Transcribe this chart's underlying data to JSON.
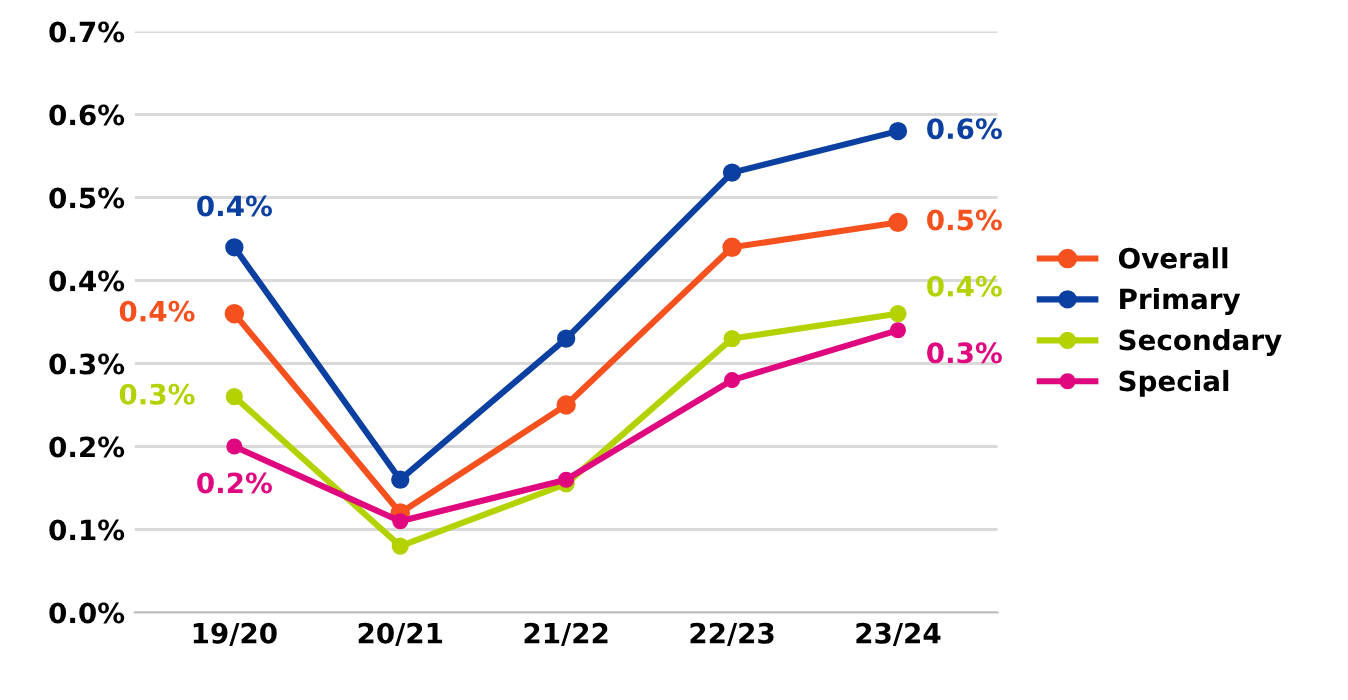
{
  "chart_data": {
    "type": "line",
    "categories": [
      "19/20",
      "20/21",
      "21/22",
      "22/23",
      "23/24"
    ],
    "series": [
      {
        "name": "Overall",
        "color": "#f4511e",
        "values": [
          0.36,
          0.12,
          0.25,
          0.44,
          0.47
        ],
        "value_labels": [
          "0.4%",
          null,
          null,
          null,
          "0.5%"
        ]
      },
      {
        "name": "Primary",
        "color": "#0b3fa0",
        "values": [
          0.44,
          0.16,
          0.33,
          0.53,
          0.58
        ],
        "value_labels": [
          "0.4%",
          null,
          null,
          null,
          "0.6%"
        ]
      },
      {
        "name": "Secondary",
        "color": "#b4d200",
        "values": [
          0.26,
          0.08,
          0.155,
          0.33,
          0.36
        ],
        "value_labels": [
          "0.3%",
          null,
          null,
          null,
          "0.4%"
        ]
      },
      {
        "name": "Special",
        "color": "#e0087e",
        "values": [
          0.2,
          0.11,
          0.16,
          0.28,
          0.34
        ],
        "value_labels": [
          "0.2%",
          null,
          null,
          null,
          "0.3%"
        ]
      }
    ],
    "ylim": [
      0,
      0.7
    ],
    "yticks": [
      {
        "value": 0,
        "label": "0.0%"
      },
      {
        "value": 0.1,
        "label": "0.1%"
      },
      {
        "value": 0.2,
        "label": "0.2%"
      },
      {
        "value": 0.3,
        "label": "0.3%"
      },
      {
        "value": 0.4,
        "label": "0.4%"
      },
      {
        "value": 0.5,
        "label": "0.5%"
      },
      {
        "value": 0.6,
        "label": "0.6%"
      },
      {
        "value": 0.7,
        "label": "0.7%"
      }
    ],
    "grid": "y",
    "legend": "right",
    "marker": "circle",
    "line_style": "solid"
  }
}
